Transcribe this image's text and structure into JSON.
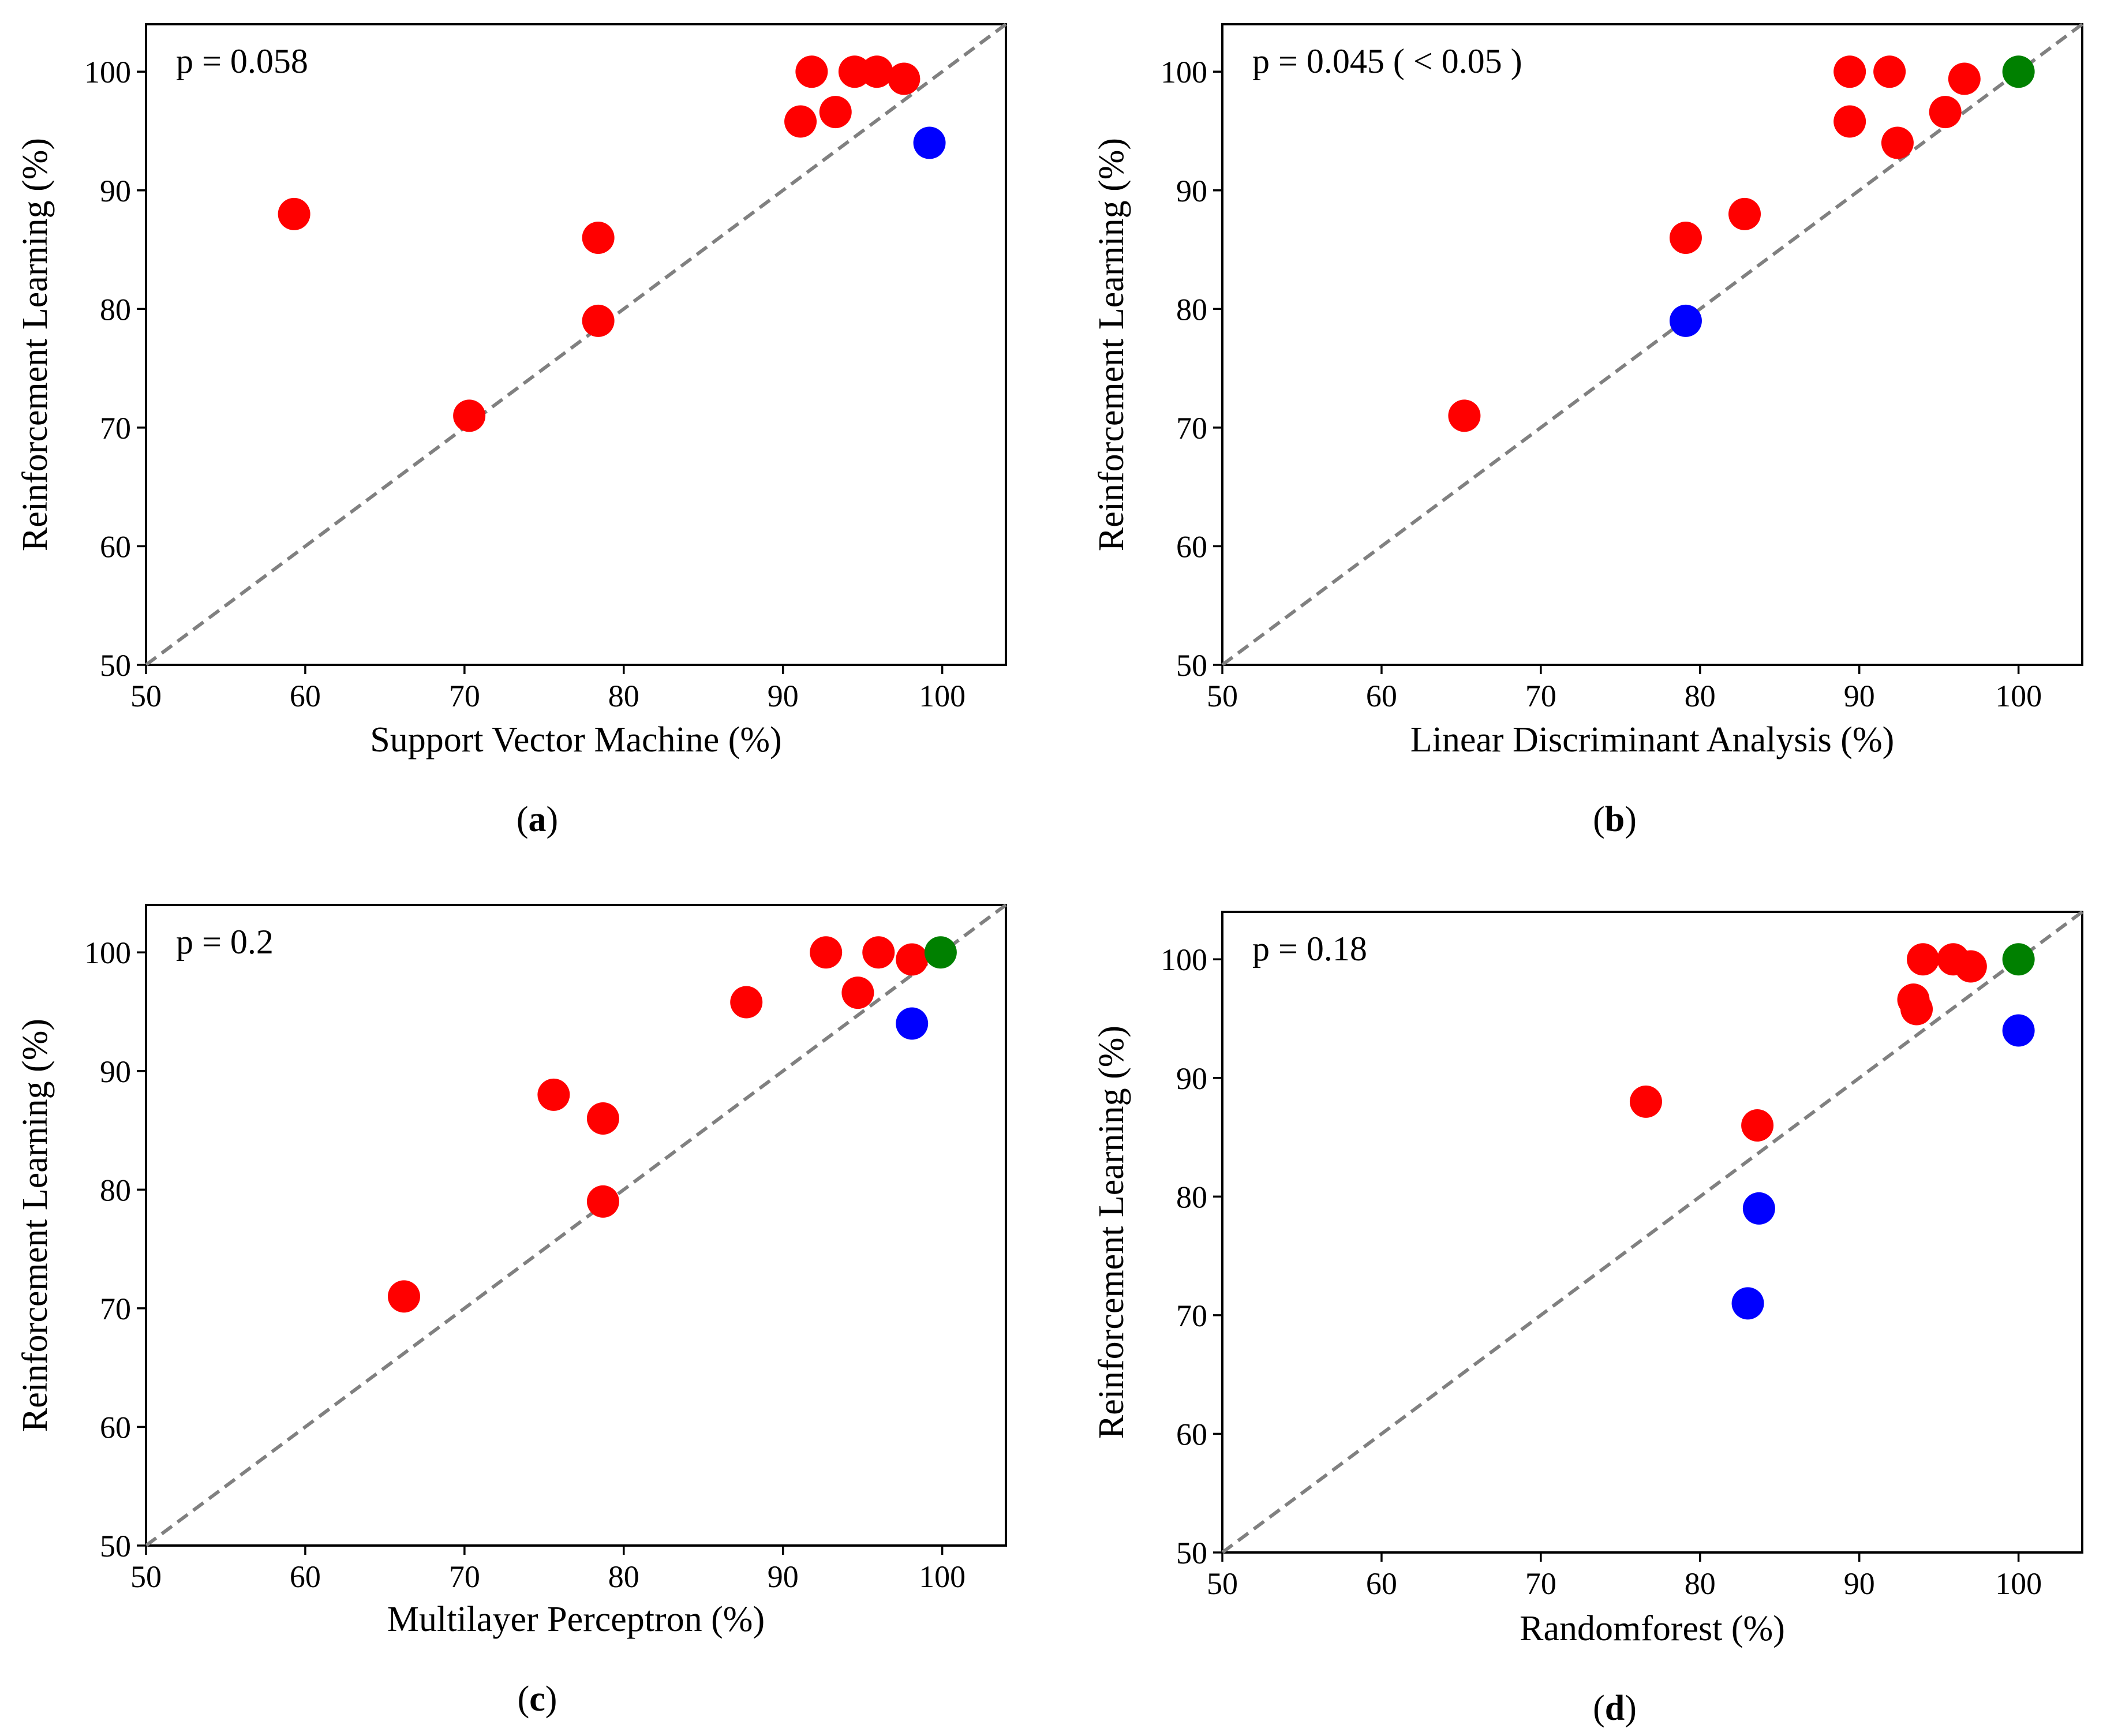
{
  "colors": {
    "above": "#ff0000",
    "below": "#0000ff",
    "equal": "#008000",
    "reference_line": "#808080"
  },
  "chart_data": [
    {
      "type": "scatter",
      "panel": "a",
      "caption": "(a)",
      "annotation": "p = 0.058",
      "xlabel": "Support Vector Machine (%)",
      "ylabel": "Reinforcement Learning (%)",
      "xlim": [
        50,
        104
      ],
      "ylim": [
        50,
        104
      ],
      "xticks": [
        50,
        60,
        70,
        80,
        90,
        100
      ],
      "yticks": [
        50,
        60,
        70,
        80,
        90,
        100
      ],
      "reference_line": "y = x",
      "points": [
        {
          "x": 59.3,
          "y": 88.0,
          "color": "above"
        },
        {
          "x": 70.3,
          "y": 71.0,
          "color": "above"
        },
        {
          "x": 78.4,
          "y": 86.0,
          "color": "above"
        },
        {
          "x": 78.4,
          "y": 79.0,
          "color": "above"
        },
        {
          "x": 91.1,
          "y": 95.8,
          "color": "above"
        },
        {
          "x": 91.8,
          "y": 100.0,
          "color": "above"
        },
        {
          "x": 93.3,
          "y": 96.6,
          "color": "above"
        },
        {
          "x": 94.5,
          "y": 100.0,
          "color": "above"
        },
        {
          "x": 95.9,
          "y": 100.0,
          "color": "above"
        },
        {
          "x": 97.6,
          "y": 99.4,
          "color": "above"
        },
        {
          "x": 99.2,
          "y": 94.0,
          "color": "below"
        }
      ]
    },
    {
      "type": "scatter",
      "panel": "b",
      "caption": "(b)",
      "annotation": "p = 0.045 ( < 0.05 )",
      "xlabel": "Linear Discriminant Analysis (%)",
      "ylabel": "Reinforcement Learning (%)",
      "xlim": [
        50,
        104
      ],
      "ylim": [
        50,
        104
      ],
      "xticks": [
        50,
        60,
        70,
        80,
        90,
        100
      ],
      "yticks": [
        50,
        60,
        70,
        80,
        90,
        100
      ],
      "reference_line": "y = x",
      "points": [
        {
          "x": 65.2,
          "y": 71.0,
          "color": "above"
        },
        {
          "x": 79.1,
          "y": 86.0,
          "color": "above"
        },
        {
          "x": 79.1,
          "y": 79.0,
          "color": "below"
        },
        {
          "x": 82.8,
          "y": 88.0,
          "color": "above"
        },
        {
          "x": 89.4,
          "y": 100.0,
          "color": "above"
        },
        {
          "x": 89.4,
          "y": 95.8,
          "color": "above"
        },
        {
          "x": 91.9,
          "y": 100.0,
          "color": "above"
        },
        {
          "x": 92.4,
          "y": 94.0,
          "color": "above"
        },
        {
          "x": 95.4,
          "y": 96.6,
          "color": "above"
        },
        {
          "x": 96.6,
          "y": 99.4,
          "color": "above"
        },
        {
          "x": 100.0,
          "y": 100.0,
          "color": "equal"
        }
      ]
    },
    {
      "type": "scatter",
      "panel": "c",
      "caption": "(c)",
      "annotation": "p = 0.2",
      "xlabel": "Multilayer Perceptron (%)",
      "ylabel": "Reinforcement Learning (%)",
      "xlim": [
        50,
        104
      ],
      "ylim": [
        50,
        104
      ],
      "xticks": [
        50,
        60,
        70,
        80,
        90,
        100
      ],
      "yticks": [
        50,
        60,
        70,
        80,
        90,
        100
      ],
      "reference_line": "y = x",
      "points": [
        {
          "x": 66.2,
          "y": 71.0,
          "color": "above"
        },
        {
          "x": 75.6,
          "y": 88.0,
          "color": "above"
        },
        {
          "x": 78.7,
          "y": 86.0,
          "color": "above"
        },
        {
          "x": 78.7,
          "y": 79.0,
          "color": "above"
        },
        {
          "x": 87.7,
          "y": 95.8,
          "color": "above"
        },
        {
          "x": 92.7,
          "y": 100.0,
          "color": "above"
        },
        {
          "x": 94.7,
          "y": 96.6,
          "color": "above"
        },
        {
          "x": 96.0,
          "y": 100.0,
          "color": "above"
        },
        {
          "x": 98.1,
          "y": 99.4,
          "color": "above"
        },
        {
          "x": 98.1,
          "y": 94.0,
          "color": "below"
        },
        {
          "x": 99.9,
          "y": 100.0,
          "color": "equal"
        }
      ]
    },
    {
      "type": "scatter",
      "panel": "d",
      "caption": "(d)",
      "annotation": "p = 0.18",
      "xlabel": "Randomforest (%)",
      "ylabel": "Reinforcement Learning (%)",
      "xlim": [
        50,
        104
      ],
      "ylim": [
        50,
        104
      ],
      "xticks": [
        50,
        60,
        70,
        80,
        90,
        100
      ],
      "yticks": [
        50,
        60,
        70,
        80,
        90,
        100
      ],
      "reference_line": "y = x",
      "points": [
        {
          "x": 76.6,
          "y": 88.0,
          "color": "above"
        },
        {
          "x": 83.6,
          "y": 86.0,
          "color": "above"
        },
        {
          "x": 83.7,
          "y": 79.0,
          "color": "below"
        },
        {
          "x": 83.0,
          "y": 71.0,
          "color": "below"
        },
        {
          "x": 93.4,
          "y": 96.6,
          "color": "above"
        },
        {
          "x": 93.6,
          "y": 95.8,
          "color": "above"
        },
        {
          "x": 94.0,
          "y": 100.0,
          "color": "above"
        },
        {
          "x": 95.9,
          "y": 100.0,
          "color": "above"
        },
        {
          "x": 97.0,
          "y": 99.4,
          "color": "above"
        },
        {
          "x": 100.0,
          "y": 94.0,
          "color": "below"
        },
        {
          "x": 100.0,
          "y": 100.0,
          "color": "equal"
        }
      ]
    }
  ]
}
